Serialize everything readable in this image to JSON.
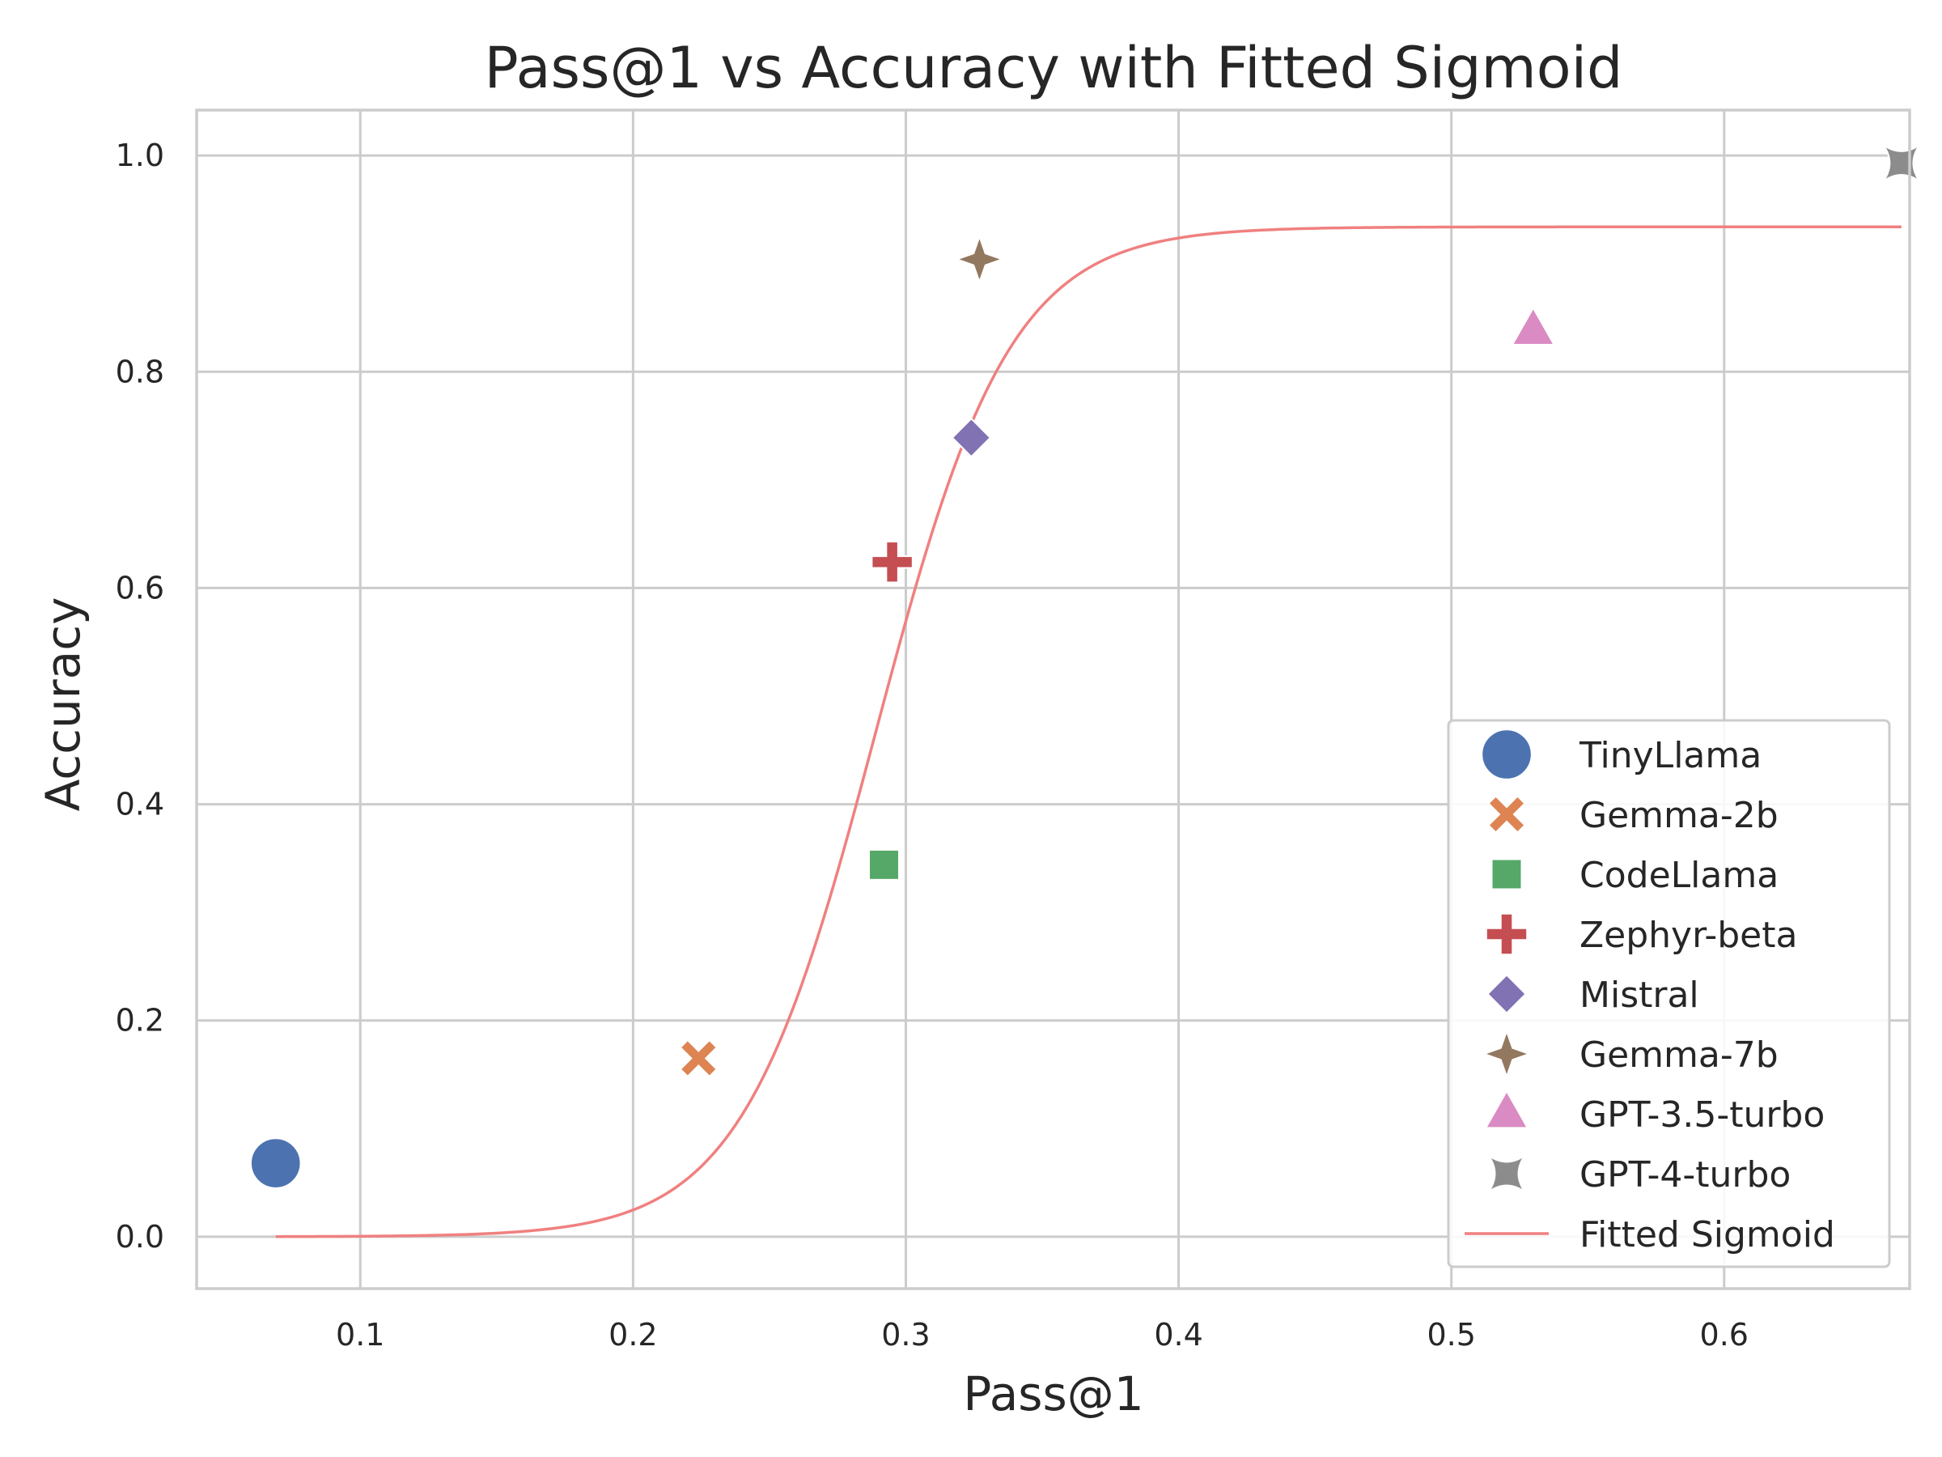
{
  "chart_data": {
    "type": "scatter",
    "title": "Pass@1 vs Accuracy with Fitted Sigmoid",
    "xlabel": "Pass@1",
    "ylabel": "Accuracy",
    "xlim": [
      0.04,
      0.668
    ],
    "ylim": [
      -0.048,
      1.042
    ],
    "xticks": [
      0.1,
      0.2,
      0.3,
      0.4,
      0.5,
      0.6
    ],
    "xtick_labels": [
      "0.1",
      "0.2",
      "0.3",
      "0.4",
      "0.5",
      "0.6"
    ],
    "yticks": [
      0.0,
      0.2,
      0.4,
      0.6,
      0.8,
      1.0
    ],
    "ytick_labels": [
      "0.0",
      "0.2",
      "0.4",
      "0.6",
      "0.8",
      "1.0"
    ],
    "grid": true,
    "legend_position": "lower-right",
    "series": [
      {
        "name": "TinyLlama",
        "marker": "circle",
        "color": "#4c72b0",
        "x": 0.069,
        "y": 0.068
      },
      {
        "name": "Gemma-2b",
        "marker": "x",
        "color": "#dd8452",
        "x": 0.224,
        "y": 0.165
      },
      {
        "name": "CodeLlama",
        "marker": "square",
        "color": "#55a868",
        "x": 0.292,
        "y": 0.344
      },
      {
        "name": "Zephyr-beta",
        "marker": "plus",
        "color": "#c44e52",
        "x": 0.295,
        "y": 0.624
      },
      {
        "name": "Mistral",
        "marker": "diamond",
        "color": "#8172b3",
        "x": 0.324,
        "y": 0.739
      },
      {
        "name": "Gemma-7b",
        "marker": "star4",
        "color": "#937860",
        "x": 0.327,
        "y": 0.904
      },
      {
        "name": "GPT-3.5-turbo",
        "marker": "triangle",
        "color": "#da8bc3",
        "x": 0.53,
        "y": 0.838
      },
      {
        "name": "GPT-4-turbo",
        "marker": "concave-square",
        "color": "#8c8c8c",
        "x": 0.665,
        "y": 0.993
      }
    ],
    "fit": {
      "name": "Fitted Sigmoid",
      "type": "sigmoid",
      "color": "#f08080",
      "L": 0.934,
      "k": 40.5,
      "x0": 0.289,
      "x_range": [
        0.069,
        0.665
      ]
    }
  }
}
